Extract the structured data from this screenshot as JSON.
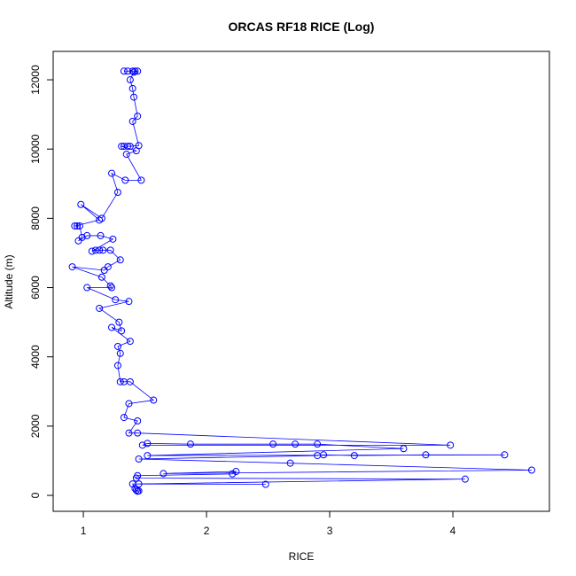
{
  "chart_data": {
    "type": "scatter",
    "lines": true,
    "title": "ORCAS RF18 RICE (Log)",
    "x_label": "RICE",
    "y_label": "Altitude (m)",
    "color": "#0000ff",
    "x": [
      1.33,
      1.36,
      1.4,
      1.42,
      1.44,
      1.41,
      1.38,
      1.4,
      1.41,
      1.44,
      1.4,
      1.45,
      1.38,
      1.36,
      1.33,
      1.31,
      1.43,
      1.35,
      1.47,
      1.34,
      1.23,
      1.28,
      1.15,
      0.98,
      1.13,
      0.93,
      0.95,
      0.97,
      0.99,
      0.96,
      1.03,
      1.14,
      1.24,
      1.07,
      1.1,
      1.13,
      1.16,
      1.22,
      1.3,
      1.2,
      1.17,
      0.91,
      1.15,
      1.22,
      1.23,
      1.03,
      1.26,
      1.37,
      1.13,
      1.29,
      1.31,
      1.23,
      1.38,
      1.28,
      1.3,
      1.28,
      1.3,
      1.33,
      1.38,
      1.57,
      1.37,
      1.33,
      1.44,
      1.37,
      1.44,
      3.98,
      1.48,
      1.52,
      1.87,
      2.54,
      2.72,
      2.9,
      3.6,
      1.52,
      4.42,
      3.78,
      3.2,
      2.95,
      2.9,
      1.45,
      2.68,
      4.64,
      1.65,
      2.24,
      2.21,
      1.44,
      1.43,
      4.1,
      1.45,
      2.48,
      1.4,
      1.42,
      1.43,
      1.44,
      1.45
    ],
    "y": [
      12250,
      12250,
      12250,
      12250,
      12250,
      12220,
      12000,
      11750,
      11500,
      10950,
      10800,
      10100,
      10080,
      10080,
      10080,
      10080,
      9950,
      9850,
      9100,
      9100,
      9300,
      8750,
      8000,
      8400,
      7950,
      7780,
      7780,
      7780,
      7450,
      7350,
      7500,
      7500,
      7400,
      7050,
      7080,
      7080,
      7080,
      7080,
      6800,
      6600,
      6500,
      6600,
      6300,
      6050,
      6000,
      6000,
      5650,
      5600,
      5400,
      5000,
      4750,
      4850,
      4450,
      4300,
      4100,
      3750,
      3280,
      3280,
      3280,
      2750,
      2650,
      2250,
      2150,
      1800,
      1800,
      1450,
      1450,
      1500,
      1480,
      1480,
      1480,
      1480,
      1350,
      1150,
      1170,
      1170,
      1150,
      1170,
      1150,
      1050,
      930,
      730,
      630,
      690,
      620,
      570,
      500,
      470,
      330,
      320,
      330,
      200,
      150,
      120,
      130
    ],
    "xlim": [
      0.755,
      4.784
    ],
    "ylim": [
      -460,
      12820
    ],
    "xticks": [
      1,
      2,
      3,
      4
    ],
    "yticks": [
      0,
      2000,
      4000,
      6000,
      8000,
      10000,
      12000
    ]
  }
}
